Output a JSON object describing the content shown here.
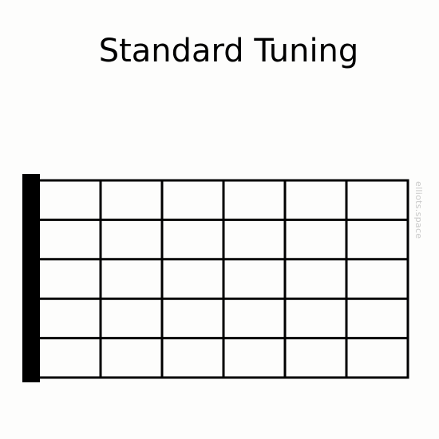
{
  "diagram": {
    "title": "Standard Tuning",
    "watermark": "elliots.space",
    "strings": 6,
    "frets": 6,
    "colors": {
      "line": "#000000",
      "background": "#fdfdfc",
      "nut": "#000000",
      "watermark": "#c9c9c9"
    }
  }
}
